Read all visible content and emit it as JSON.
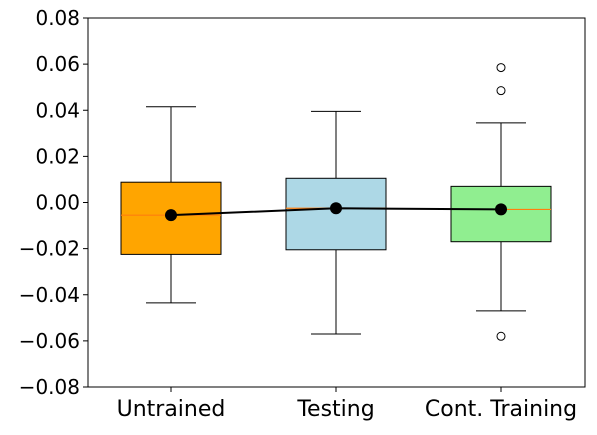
{
  "chart_data": {
    "type": "box",
    "title": "",
    "xlabel": "",
    "ylabel": "",
    "ylim": [
      -0.08,
      0.08
    ],
    "yticks": [
      -0.08,
      -0.06,
      -0.04,
      -0.02,
      0.0,
      0.02,
      0.04,
      0.06,
      0.08
    ],
    "ytick_labels": [
      "−0.08",
      "−0.06",
      "−0.04",
      "−0.02",
      "0.00",
      "0.02",
      "0.04",
      "0.06",
      "0.08"
    ],
    "categories": [
      "Untrained",
      "Testing",
      "Cont. Training"
    ],
    "boxes": [
      {
        "category": "Untrained",
        "color": "#ffa500",
        "whisker_low": -0.0435,
        "q1": -0.0225,
        "median": -0.0055,
        "q3": 0.0088,
        "whisker_high": 0.0415,
        "mean": -0.0055,
        "outliers": []
      },
      {
        "category": "Testing",
        "color": "#add8e6",
        "whisker_low": -0.057,
        "q1": -0.0205,
        "median": -0.0025,
        "q3": 0.0105,
        "whisker_high": 0.0395,
        "mean": -0.0025,
        "outliers": []
      },
      {
        "category": "Cont. Training",
        "color": "#90ee90",
        "whisker_low": -0.047,
        "q1": -0.017,
        "median": -0.003,
        "q3": 0.007,
        "whisker_high": 0.0345,
        "mean": -0.003,
        "outliers": [
          0.0585,
          0.0485,
          -0.058
        ]
      }
    ],
    "median_color": "#ff7f0e",
    "mean_line_color": "#000000",
    "grid": false
  }
}
